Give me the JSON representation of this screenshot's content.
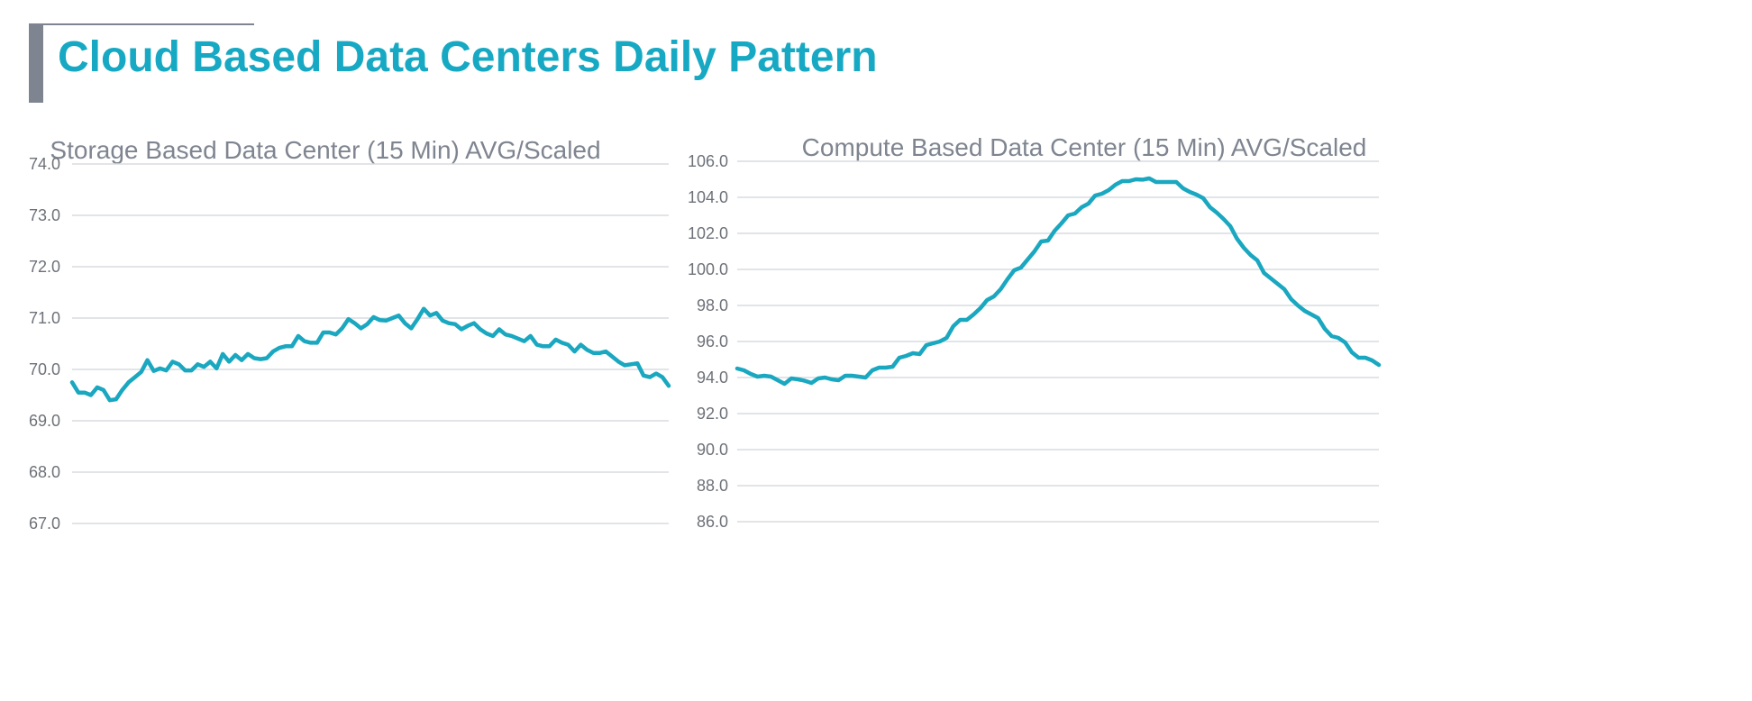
{
  "page": {
    "title": "Cloud Based Data Centers Daily Pattern"
  },
  "colors": {
    "accent": "#17a9c3",
    "series": "#1aa7c0",
    "title_bar": "#7f8590"
  },
  "chart_data": [
    {
      "type": "line",
      "title": "Storage Based Data Center (15 Min) AVG/Scaled",
      "xlabel": "",
      "ylabel": "",
      "ylim": [
        67.0,
        74.0
      ],
      "yticks": [
        "67.0",
        "68.0",
        "69.0",
        "70.0",
        "71.0",
        "72.0",
        "73.0",
        "74.0"
      ],
      "grid": true,
      "legend": "none",
      "x": [
        0,
        1,
        2,
        3,
        4,
        5,
        6,
        7,
        8,
        9,
        10,
        11,
        12,
        13,
        14,
        15,
        16,
        17,
        18,
        19,
        20,
        21,
        22,
        23,
        24,
        25,
        26,
        27,
        28,
        29,
        30,
        31,
        32,
        33,
        34,
        35,
        36,
        37,
        38,
        39,
        40,
        41,
        42,
        43,
        44,
        45,
        46,
        47,
        48,
        49,
        50,
        51,
        52,
        53,
        54,
        55,
        56,
        57,
        58,
        59,
        60,
        61,
        62,
        63,
        64,
        65,
        66,
        67,
        68,
        69,
        70,
        71,
        72,
        73,
        74,
        75,
        76,
        77,
        78,
        79,
        80,
        81,
        82,
        83,
        84,
        85,
        86,
        87,
        88,
        89,
        90,
        91,
        92,
        93,
        94,
        95
      ],
      "series": [
        {
          "values": [
            69.75,
            69.55,
            69.55,
            69.5,
            69.65,
            69.6,
            69.4,
            69.42,
            69.6,
            69.75,
            69.85,
            69.95,
            70.18,
            69.97,
            70.02,
            69.98,
            70.15,
            70.1,
            69.98,
            69.98,
            70.1,
            70.05,
            70.15,
            70.02,
            70.3,
            70.15,
            70.28,
            70.18,
            70.3,
            70.22,
            70.2,
            70.22,
            70.35,
            70.42,
            70.45,
            70.45,
            70.65,
            70.55,
            70.52,
            70.52,
            70.72,
            70.72,
            70.68,
            70.8,
            70.98,
            70.9,
            70.8,
            70.88,
            71.02,
            70.96,
            70.95,
            71.0,
            71.05,
            70.9,
            70.8,
            70.98,
            71.18,
            71.05,
            71.1,
            70.95,
            70.9,
            70.88,
            70.78,
            70.85,
            70.9,
            70.78,
            70.7,
            70.65,
            70.78,
            70.68,
            70.65,
            70.6,
            70.55,
            70.65,
            70.48,
            70.45,
            70.45,
            70.58,
            70.52,
            70.48,
            70.35,
            70.48,
            70.38,
            70.32,
            70.32,
            70.35,
            70.25,
            70.15,
            70.08,
            70.1,
            70.12,
            69.88,
            69.85,
            69.92,
            69.85,
            69.68
          ]
        }
      ]
    },
    {
      "type": "line",
      "title": "Compute Based Data Center (15 Min) AVG/Scaled",
      "xlabel": "",
      "ylabel": "",
      "ylim": [
        86.0,
        106.0
      ],
      "yticks": [
        "86.0",
        "88.0",
        "90.0",
        "92.0",
        "94.0",
        "96.0",
        "98.0",
        "100.0",
        "102.0",
        "104.0",
        "106.0"
      ],
      "grid": true,
      "legend": "none",
      "x": [
        0,
        1,
        2,
        3,
        4,
        5,
        6,
        7,
        8,
        9,
        10,
        11,
        12,
        13,
        14,
        15,
        16,
        17,
        18,
        19,
        20,
        21,
        22,
        23,
        24,
        25,
        26,
        27,
        28,
        29,
        30,
        31,
        32,
        33,
        34,
        35,
        36,
        37,
        38,
        39,
        40,
        41,
        42,
        43,
        44,
        45,
        46,
        47,
        48,
        49,
        50,
        51,
        52,
        53,
        54,
        55,
        56,
        57,
        58,
        59,
        60,
        61,
        62,
        63,
        64,
        65,
        66,
        67,
        68,
        69,
        70,
        71,
        72,
        73,
        74,
        75,
        76,
        77,
        78,
        79,
        80,
        81,
        82,
        83,
        84,
        85,
        86,
        87,
        88,
        89,
        90,
        91,
        92,
        93,
        94,
        95
      ],
      "series": [
        {
          "values": [
            94.5,
            94.4,
            94.2,
            94.05,
            94.1,
            94.05,
            93.85,
            93.65,
            93.95,
            93.9,
            93.82,
            93.7,
            93.95,
            94.0,
            93.9,
            93.85,
            94.1,
            94.1,
            94.05,
            94.0,
            94.4,
            94.55,
            94.55,
            94.6,
            95.1,
            95.2,
            95.35,
            95.3,
            95.8,
            95.9,
            96.0,
            96.2,
            96.85,
            97.2,
            97.2,
            97.5,
            97.85,
            98.3,
            98.5,
            98.9,
            99.45,
            99.95,
            100.1,
            100.55,
            101.0,
            101.55,
            101.6,
            102.15,
            102.55,
            103.0,
            103.1,
            103.45,
            103.65,
            104.1,
            104.2,
            104.4,
            104.7,
            104.9,
            104.9,
            105.0,
            104.98,
            105.05,
            104.85,
            104.85,
            104.85,
            104.85,
            104.5,
            104.3,
            104.15,
            103.95,
            103.45,
            103.15,
            102.8,
            102.4,
            101.7,
            101.2,
            100.8,
            100.5,
            99.8,
            99.5,
            99.2,
            98.9,
            98.35,
            98.0,
            97.7,
            97.5,
            97.3,
            96.7,
            96.3,
            96.2,
            95.95,
            95.4,
            95.1,
            95.1,
            94.95,
            94.7
          ]
        }
      ]
    }
  ]
}
